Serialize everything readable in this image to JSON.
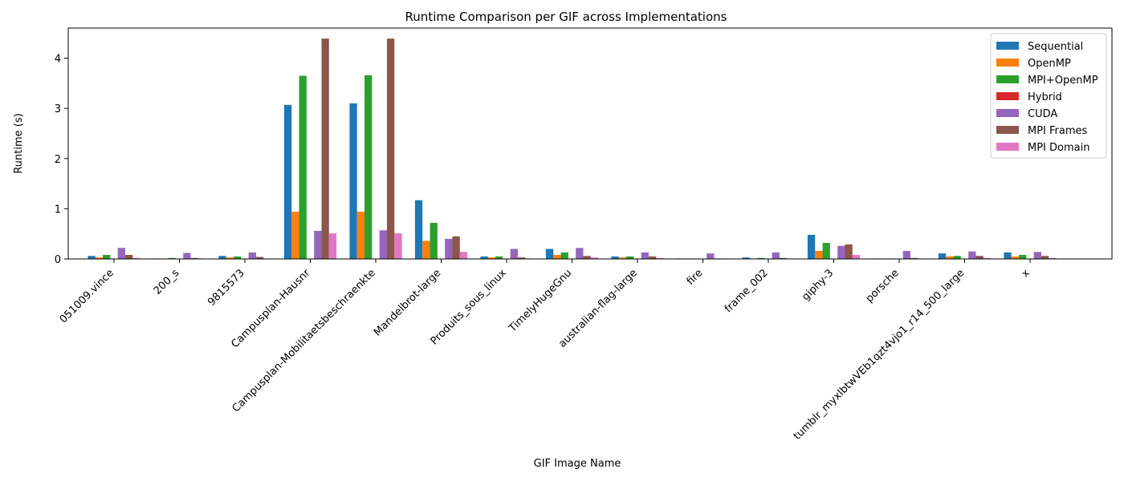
{
  "chart_data": {
    "type": "bar",
    "title": "Runtime Comparison per GIF across Implementations",
    "xlabel": "GIF Image Name",
    "ylabel": "Runtime (s)",
    "ylim": [
      0,
      4.6
    ],
    "yticks": [
      0,
      1,
      2,
      3,
      4
    ],
    "legend_position": "top-right",
    "grid": false,
    "categories": [
      "051009.vince",
      "200_s",
      "9815573",
      "Campusplan-Hausnr",
      "Campusplan-Mobilitaetsbeschraenkte",
      "Mandelbrot-large",
      "Produits_sous_linux",
      "TimelyHugeGnu",
      "australian-flag-large",
      "fire",
      "frame_002",
      "giphy-3",
      "porsche",
      "tumblr_myxlbtwVEb1qzt4vjo1_r14_500_large",
      "x"
    ],
    "series": [
      {
        "name": "Sequential",
        "color": "#1f77b4",
        "values": [
          0.06,
          0.01,
          0.06,
          3.07,
          3.1,
          1.17,
          0.05,
          0.2,
          0.05,
          0.01,
          0.03,
          0.48,
          0.01,
          0.11,
          0.13
        ]
      },
      {
        "name": "OpenMP",
        "color": "#ff7f0e",
        "values": [
          0.03,
          0.01,
          0.03,
          0.94,
          0.94,
          0.36,
          0.03,
          0.08,
          0.03,
          0.01,
          0.01,
          0.16,
          0.01,
          0.05,
          0.05
        ]
      },
      {
        "name": "MPI+OpenMP",
        "color": "#2ca02c",
        "values": [
          0.08,
          0.02,
          0.05,
          3.65,
          3.66,
          0.72,
          0.05,
          0.13,
          0.05,
          0.01,
          0.02,
          0.32,
          0.01,
          0.06,
          0.08
        ]
      },
      {
        "name": "Hybrid",
        "color": "#d62728",
        "values": [
          0,
          0,
          0,
          0,
          0,
          0,
          0,
          0,
          0,
          0,
          0,
          0,
          0,
          0,
          0
        ]
      },
      {
        "name": "CUDA",
        "color": "#9467bd",
        "values": [
          0.22,
          0.12,
          0.13,
          0.56,
          0.57,
          0.4,
          0.2,
          0.22,
          0.13,
          0.11,
          0.13,
          0.26,
          0.16,
          0.15,
          0.14
        ]
      },
      {
        "name": "MPI Frames",
        "color": "#8c564b",
        "values": [
          0.08,
          0.02,
          0.04,
          4.39,
          4.39,
          0.45,
          0.03,
          0.06,
          0.05,
          0.01,
          0.02,
          0.29,
          0.02,
          0.06,
          0.06
        ]
      },
      {
        "name": "MPI Domain",
        "color": "#e377c2",
        "values": [
          0.02,
          0.01,
          0.01,
          0.51,
          0.51,
          0.14,
          0.01,
          0.03,
          0.02,
          0.01,
          0.01,
          0.08,
          0.01,
          0.02,
          0.02
        ]
      }
    ]
  }
}
